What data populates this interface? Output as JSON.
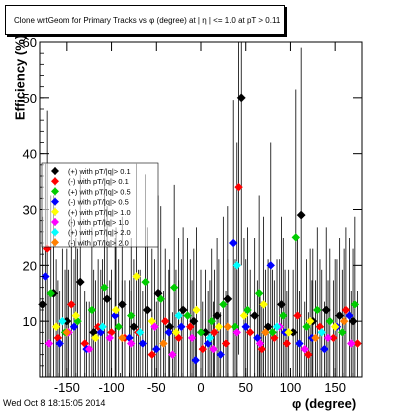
{
  "footer": {
    "timestamp": "Wed Oct  8 18:15:05 2014"
  },
  "chart_data": {
    "type": "scatter",
    "title": "Clone wrtGeom for Primary Tracks vs φ (degree) at | η | <= 1.0 at pT > 0.11",
    "xlabel": "φ (degree)",
    "ylabel": "Efficiency (%)",
    "xlim": [
      -180,
      180
    ],
    "ylim": [
      0,
      60
    ],
    "x_ticks": [
      -150,
      -100,
      -50,
      0,
      50,
      100,
      150
    ],
    "y_ticks": [
      0,
      10,
      20,
      30,
      40,
      50,
      60
    ],
    "grid": false,
    "legend_position": "upper-left",
    "series": [
      {
        "name": "(+) with pT/|q|> 0.1",
        "color": "#000000",
        "x": [
          -177,
          -165,
          -150,
          -135,
          -120,
          -105,
          -88,
          -75,
          -60,
          -48,
          -35,
          -20,
          -8,
          5,
          18,
          30,
          45,
          60,
          75,
          90,
          103,
          112,
          125,
          140,
          155,
          170
        ],
        "y": [
          13,
          15,
          10,
          17,
          8,
          14,
          13,
          9,
          12,
          15,
          9,
          12,
          10,
          8,
          11,
          14,
          50,
          11,
          9,
          13,
          8,
          29,
          10,
          12,
          11,
          10
        ]
      },
      {
        "name": "(-) with pT/|q|> 0.1",
        "color": "#ff0000",
        "x": [
          -172,
          -160,
          -145,
          -130,
          -115,
          -100,
          -85,
          -70,
          -55,
          -40,
          -25,
          -12,
          2,
          15,
          28,
          42,
          55,
          68,
          82,
          96,
          108,
          120,
          133,
          148,
          162,
          175
        ],
        "y": [
          23,
          7,
          13,
          6,
          9,
          8,
          7,
          8,
          4,
          10,
          7,
          9,
          5,
          8,
          6,
          34,
          8,
          5,
          7,
          6,
          11,
          4,
          9,
          7,
          12,
          6
        ]
      },
      {
        "name": "(+) with pT/|q|> 0.5",
        "color": "#00cc00",
        "x": [
          -168,
          -152,
          -138,
          -122,
          -108,
          -92,
          -78,
          -62,
          -45,
          -30,
          -15,
          0,
          12,
          25,
          38,
          52,
          65,
          80,
          92,
          106,
          118,
          130,
          144,
          158,
          172
        ],
        "y": [
          15,
          8,
          10,
          12,
          16,
          9,
          11,
          17,
          14,
          16,
          11,
          8,
          10,
          13,
          9,
          12,
          15,
          8,
          11,
          25,
          9,
          12,
          10,
          8,
          13
        ]
      },
      {
        "name": "(-) with pT/|q|> 0.5",
        "color": "#0000ff",
        "x": [
          -174,
          -158,
          -142,
          -128,
          -112,
          -96,
          -80,
          -65,
          -50,
          -36,
          -22,
          -6,
          8,
          22,
          36,
          50,
          63,
          78,
          94,
          110,
          124,
          138,
          152,
          166
        ],
        "y": [
          18,
          6,
          9,
          5,
          8,
          11,
          7,
          6,
          5,
          8,
          9,
          3,
          6,
          4,
          24,
          9,
          7,
          20,
          8,
          6,
          7,
          5,
          9,
          11
        ]
      },
      {
        "name": "(+) with pT/|q|> 1.0",
        "color": "#ffff00",
        "x": [
          -162,
          -140,
          -118,
          -95,
          -72,
          -55,
          -28,
          -5,
          20,
          48,
          70,
          98,
          122,
          150
        ],
        "y": [
          9,
          11,
          7,
          12,
          18,
          10,
          8,
          12,
          9,
          11,
          13,
          8,
          10,
          9
        ]
      },
      {
        "name": "(-) with pT/|q|> 1.0",
        "color": "#ff00ff",
        "x": [
          -170,
          -148,
          -125,
          -102,
          -78,
          -52,
          -32,
          -10,
          14,
          40,
          66,
          88,
          116,
          142,
          168
        ],
        "y": [
          6,
          8,
          5,
          7,
          6,
          9,
          4,
          7,
          5,
          8,
          6,
          9,
          5,
          7,
          6
        ]
      },
      {
        "name": "(+) with pT/|q|> 2.0",
        "color": "#00ffff",
        "x": [
          -155,
          -110,
          -68,
          -25,
          10,
          40,
          85,
          135
        ],
        "y": [
          10,
          9,
          8,
          11,
          7,
          20,
          9,
          8
        ]
      },
      {
        "name": "(-) with pT/|q|> 2.0",
        "color": "#ff7f00",
        "x": [
          -150,
          -88,
          -42,
          30,
          72,
          128,
          160
        ],
        "y": [
          8,
          7,
          6,
          9,
          8,
          7,
          10
        ]
      }
    ]
  }
}
